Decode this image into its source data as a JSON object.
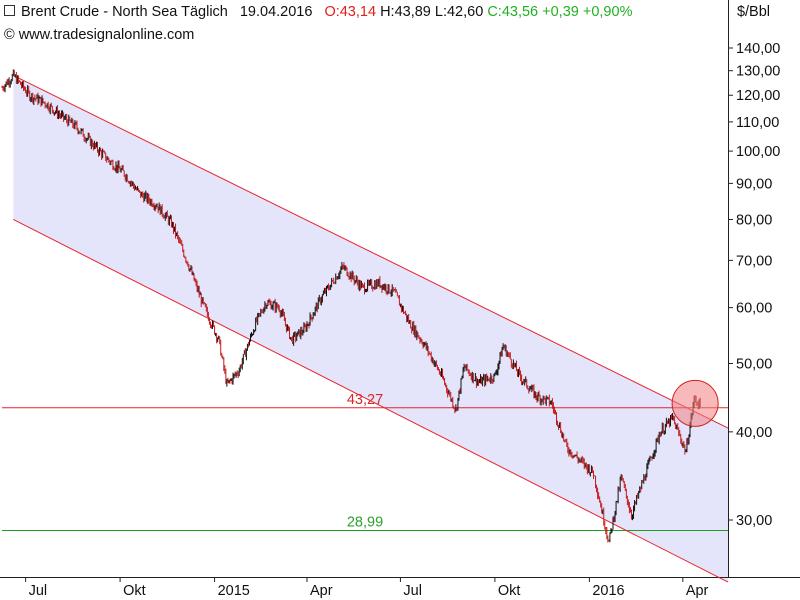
{
  "header": {
    "instrument": "Brent Crude - North Sea Täglich",
    "date": "19.04.2016",
    "open": "O:43,14",
    "high": "H:43,89",
    "low": "L:42,60",
    "close": "C:43,56",
    "change_abs": "+0,39",
    "change_pct": "+0,90%",
    "source": "www.tradesignalonline.com",
    "unit": "$/Bbl"
  },
  "colors": {
    "channel_fill": "#e4e4fb",
    "channel_line": "#e8252a",
    "support_line": "#1f9e1f",
    "resistance_label": "#d8262a",
    "support_label": "#2ea02e",
    "candle_dark": "#111111",
    "candle_red": "#c31b1b",
    "circle_fill": "#f08080",
    "circle_stroke": "#d42020",
    "header_red": "#e0201c",
    "header_green": "#22b022"
  },
  "chart_data": {
    "type": "line",
    "title": "Brent Crude - North Sea Täglich",
    "ylabel": "$/Bbl",
    "y_scale": "log",
    "ylim": [
      25,
      150
    ],
    "yticks": [
      "140,00",
      "130,00",
      "120,00",
      "110,00",
      "100,00",
      "90,00",
      "80,00",
      "70,00",
      "60,00",
      "50,00",
      "40,00",
      "30,00"
    ],
    "ytick_values": [
      140,
      130,
      120,
      110,
      100,
      90,
      80,
      70,
      60,
      50,
      40,
      30
    ],
    "xticks": [
      "Jul",
      "Okt",
      "2015",
      "Apr",
      "Jul",
      "Okt",
      "2016",
      "Apr"
    ],
    "xtick_dates": [
      "2014-07-01",
      "2014-10-01",
      "2015-01-01",
      "2015-04-01",
      "2015-07-01",
      "2015-10-01",
      "2016-01-01",
      "2016-04-01"
    ],
    "xlim": [
      "2014-06-08",
      "2016-05-15"
    ],
    "series": [
      {
        "price_path": [
          [
            "2014-06-08",
            123
          ],
          [
            "2014-06-19",
            128
          ],
          [
            "2014-07-05",
            120
          ],
          [
            "2014-07-20",
            117
          ],
          [
            "2014-08-05",
            112
          ],
          [
            "2014-08-20",
            108
          ],
          [
            "2014-09-05",
            102
          ],
          [
            "2014-09-20",
            97
          ],
          [
            "2014-10-05",
            93
          ],
          [
            "2014-10-20",
            87
          ],
          [
            "2014-11-05",
            84
          ],
          [
            "2014-11-20",
            79
          ],
          [
            "2014-12-05",
            70
          ],
          [
            "2014-12-20",
            61
          ],
          [
            "2015-01-05",
            54
          ],
          [
            "2015-01-13",
            46.6
          ],
          [
            "2015-01-25",
            49
          ],
          [
            "2015-02-10",
            57
          ],
          [
            "2015-02-20",
            61
          ],
          [
            "2015-03-05",
            60
          ],
          [
            "2015-03-17",
            54
          ],
          [
            "2015-03-30",
            56
          ],
          [
            "2015-04-15",
            62
          ],
          [
            "2015-05-06",
            68.5
          ],
          [
            "2015-05-25",
            64
          ],
          [
            "2015-06-10",
            65
          ],
          [
            "2015-06-25",
            63
          ],
          [
            "2015-07-10",
            57
          ],
          [
            "2015-07-25",
            53
          ],
          [
            "2015-08-10",
            48
          ],
          [
            "2015-08-24",
            43
          ],
          [
            "2015-09-01",
            49.5
          ],
          [
            "2015-09-15",
            47
          ],
          [
            "2015-10-01",
            48
          ],
          [
            "2015-10-09",
            53
          ],
          [
            "2015-10-25",
            48
          ],
          [
            "2015-11-10",
            45
          ],
          [
            "2015-11-25",
            44
          ],
          [
            "2015-12-10",
            38
          ],
          [
            "2015-12-22",
            36.5
          ],
          [
            "2016-01-05",
            35
          ],
          [
            "2016-01-20",
            27.9
          ],
          [
            "2016-02-01",
            34.5
          ],
          [
            "2016-02-11",
            30.5
          ],
          [
            "2016-02-25",
            35
          ],
          [
            "2016-03-10",
            40
          ],
          [
            "2016-03-22",
            41.8
          ],
          [
            "2016-04-04",
            37.5
          ],
          [
            "2016-04-12",
            44.5
          ],
          [
            "2016-04-19",
            43.56
          ]
        ]
      }
    ],
    "trend_channel": {
      "upper": [
        [
          "2014-06-19",
          128
        ],
        [
          "2016-05-15",
          40.5
        ]
      ],
      "lower": [
        [
          "2014-06-19",
          80
        ],
        [
          "2016-05-15",
          24.5
        ]
      ]
    },
    "horizontal_lines": [
      {
        "value": 43.27,
        "label": "43,27"
      },
      {
        "value": 28.99,
        "label": "28,99"
      }
    ],
    "annotation": {
      "type": "circle",
      "date": "2016-04-13",
      "value": 43.9
    },
    "grid": false,
    "legend": "none"
  }
}
